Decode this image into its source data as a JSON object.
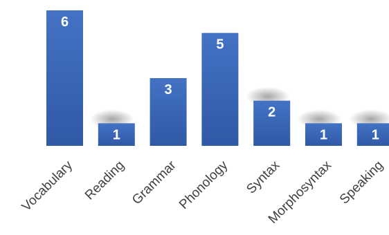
{
  "chart_data": {
    "type": "bar",
    "categories": [
      "Vocabulary",
      "Reading",
      "Grammar",
      "Phonology",
      "Syntax",
      "Morphosyntax",
      "Speaking"
    ],
    "values": [
      6,
      1,
      3,
      5,
      2,
      1,
      1
    ],
    "data_labels": [
      "6",
      "1",
      "3",
      "5",
      "2",
      "1",
      "1"
    ],
    "ylim": [
      0,
      6
    ],
    "grid": false,
    "legend": "none",
    "bar_color": "#4472C4",
    "bar_color_dark": "#3059A6",
    "label_color": "#FFFFFF",
    "axis_text_color": "#404040"
  }
}
